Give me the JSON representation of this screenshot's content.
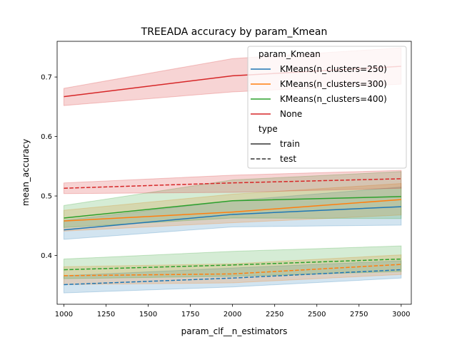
{
  "chart_data": {
    "type": "line",
    "title": "TREEADA accuracy by param_Kmean",
    "xlabel": "param_clf__n_estimators",
    "ylabel": "mean_accuracy",
    "xlim": [
      960,
      3060
    ],
    "ylim": [
      0.318,
      0.76
    ],
    "x_ticks": [
      1000,
      1250,
      1500,
      1750,
      2000,
      2250,
      2500,
      2750,
      3000
    ],
    "y_ticks": [
      0.4,
      0.5,
      0.6,
      0.7
    ],
    "y_tick_labels": [
      "0.4",
      "0.5",
      "0.6",
      "0.7"
    ],
    "grid": false,
    "legend": {
      "placement": "top-right",
      "hue_title": "param_Kmean",
      "style_title": "type",
      "hue_entries": [
        "KMeans(n_clusters=250)",
        "KMeans(n_clusters=300)",
        "KMeans(n_clusters=400)",
        "None"
      ],
      "style_entries": [
        "train",
        "test"
      ]
    },
    "colors": {
      "KMeans(n_clusters=250)": "#1f77b4",
      "KMeans(n_clusters=300)": "#ff7f0e",
      "KMeans(n_clusters=400)": "#2ca02c",
      "None": "#d62728"
    },
    "x": [
      1000,
      2000,
      3000
    ],
    "series": [
      {
        "hue": "KMeans(n_clusters=250)",
        "type": "train",
        "values": [
          0.443,
          0.469,
          0.482
        ],
        "lower": [
          0.427,
          0.448,
          0.451
        ],
        "upper": [
          0.459,
          0.492,
          0.515
        ]
      },
      {
        "hue": "KMeans(n_clusters=300)",
        "type": "train",
        "values": [
          0.458,
          0.473,
          0.494
        ],
        "lower": [
          0.441,
          0.455,
          0.468
        ],
        "upper": [
          0.476,
          0.503,
          0.521
        ]
      },
      {
        "hue": "KMeans(n_clusters=400)",
        "type": "train",
        "values": [
          0.463,
          0.492,
          0.499
        ],
        "lower": [
          0.447,
          0.463,
          0.462
        ],
        "upper": [
          0.484,
          0.527,
          0.541
        ]
      },
      {
        "hue": "None",
        "type": "train",
        "values": [
          0.667,
          0.702,
          0.718
        ],
        "lower": [
          0.652,
          0.675,
          0.688
        ],
        "upper": [
          0.681,
          0.731,
          0.749
        ]
      },
      {
        "hue": "KMeans(n_clusters=250)",
        "type": "test",
        "values": [
          0.351,
          0.362,
          0.376
        ],
        "lower": [
          0.337,
          0.347,
          0.362
        ],
        "upper": [
          0.366,
          0.379,
          0.391
        ]
      },
      {
        "hue": "KMeans(n_clusters=300)",
        "type": "test",
        "values": [
          0.366,
          0.369,
          0.385
        ],
        "lower": [
          0.351,
          0.354,
          0.368
        ],
        "upper": [
          0.381,
          0.386,
          0.401
        ]
      },
      {
        "hue": "KMeans(n_clusters=400)",
        "type": "test",
        "values": [
          0.376,
          0.384,
          0.394
        ],
        "lower": [
          0.361,
          0.365,
          0.373
        ],
        "upper": [
          0.394,
          0.407,
          0.416
        ]
      },
      {
        "hue": "None",
        "type": "test",
        "values": [
          0.513,
          0.522,
          0.529
        ],
        "lower": [
          0.504,
          0.506,
          0.513
        ],
        "upper": [
          0.522,
          0.535,
          0.543
        ]
      }
    ]
  }
}
